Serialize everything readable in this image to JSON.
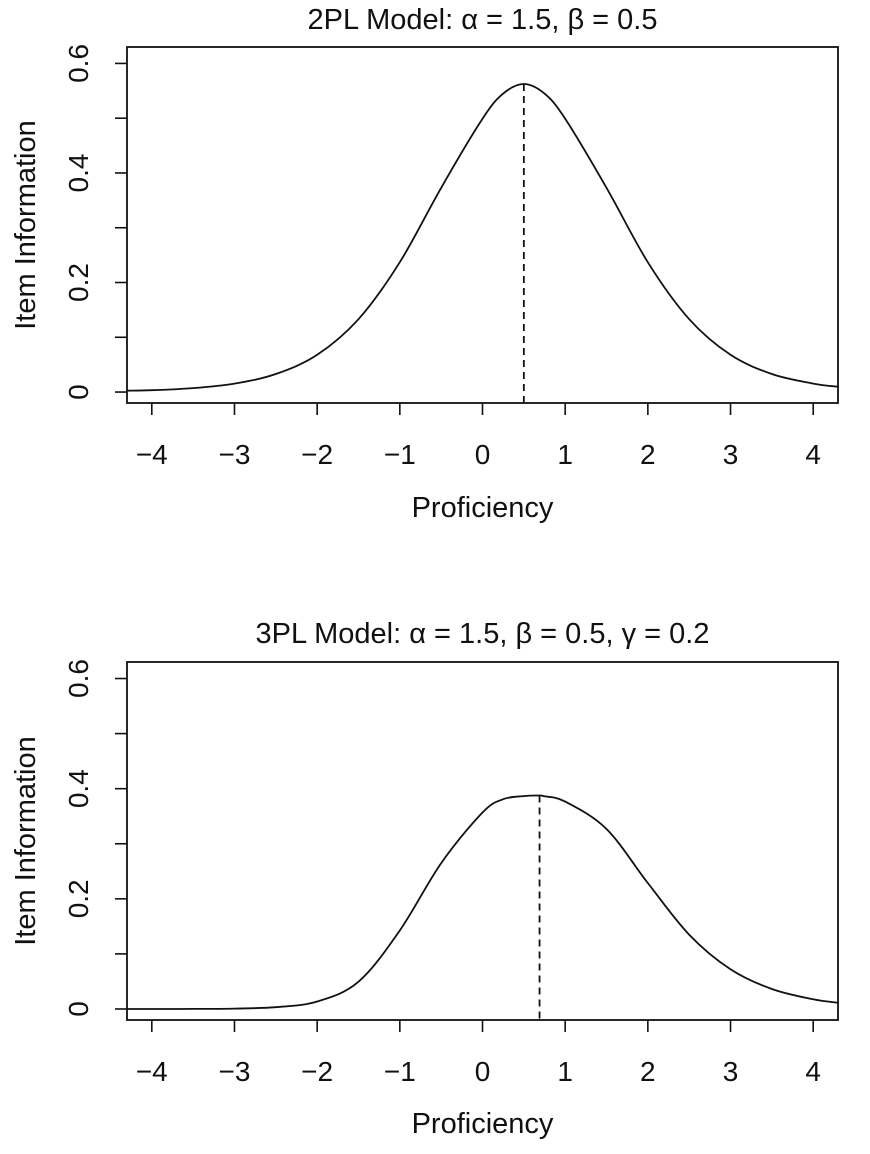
{
  "chart_data": [
    {
      "type": "line",
      "title": "2PL Model: α = 1.5, β = 0.5",
      "xlabel": "Proficiency",
      "ylabel": "Item Information",
      "xlim": [
        -4.3,
        4.3
      ],
      "ylim": [
        -0.02,
        0.63
      ],
      "x_ticks": [
        -4,
        -3,
        -2,
        -1,
        0,
        1,
        2,
        3,
        4
      ],
      "x_tick_labels": [
        "−4",
        "−3",
        "−2",
        "−1",
        "0",
        "1",
        "2",
        "3",
        "4"
      ],
      "y_ticks": [
        0,
        0.1,
        0.2,
        0.3,
        0.4,
        0.5,
        0.6
      ],
      "y_tick_labels": [
        "0",
        "",
        "0.2",
        "",
        "0.4",
        "",
        "0.6"
      ],
      "grid": false,
      "series": [
        {
          "x": [
            -4.3,
            -4,
            -3.5,
            -3,
            -2.5,
            -2,
            -1.5,
            -1,
            -0.5,
            0,
            0.25,
            0.5,
            0.75,
            1,
            1.5,
            2,
            2.5,
            3,
            3.5,
            4,
            4.3
          ],
          "y": [
            0.0025,
            0.0034,
            0.0072,
            0.0155,
            0.033,
            0.068,
            0.133,
            0.237,
            0.373,
            0.499,
            0.545,
            0.5625,
            0.545,
            0.499,
            0.373,
            0.237,
            0.133,
            0.068,
            0.033,
            0.0155,
            0.0098
          ]
        }
      ],
      "annotations": [
        {
          "type": "vline",
          "x": 0.5,
          "y_top": 0.5625,
          "style": "dashed"
        }
      ]
    },
    {
      "type": "line",
      "title": "3PL Model: α = 1.5, β = 0.5, γ = 0.2",
      "xlabel": "Proficiency",
      "ylabel": "Item Information",
      "xlim": [
        -4.3,
        4.3
      ],
      "ylim": [
        -0.02,
        0.63
      ],
      "x_ticks": [
        -4,
        -3,
        -2,
        -1,
        0,
        1,
        2,
        3,
        4
      ],
      "x_tick_labels": [
        "−4",
        "−3",
        "−2",
        "−1",
        "0",
        "1",
        "2",
        "3",
        "4"
      ],
      "y_ticks": [
        0,
        0.1,
        0.2,
        0.3,
        0.4,
        0.5,
        0.6
      ],
      "y_tick_labels": [
        "0",
        "",
        "0.2",
        "",
        "0.4",
        "",
        "0.6"
      ],
      "grid": false,
      "series": [
        {
          "x": [
            -4.3,
            -4,
            -3.5,
            -3,
            -2.5,
            -2,
            -1.5,
            -1,
            -0.5,
            0,
            0.25,
            0.5,
            0.69,
            0.75,
            1,
            1.5,
            2,
            2.5,
            3,
            3.5,
            4,
            4.3
          ],
          "y": [
            1e-05,
            3e-05,
            0.00017,
            0.00075,
            0.0033,
            0.0135,
            0.0495,
            0.1425,
            0.2648,
            0.3567,
            0.3809,
            0.3866,
            0.3876,
            0.3862,
            0.3766,
            0.3268,
            0.2287,
            0.1349,
            0.0722,
            0.0363,
            0.0176,
            0.0112
          ]
        }
      ],
      "annotations": [
        {
          "type": "vline",
          "x": 0.69,
          "y_top": 0.3876,
          "style": "dashed"
        }
      ]
    }
  ]
}
